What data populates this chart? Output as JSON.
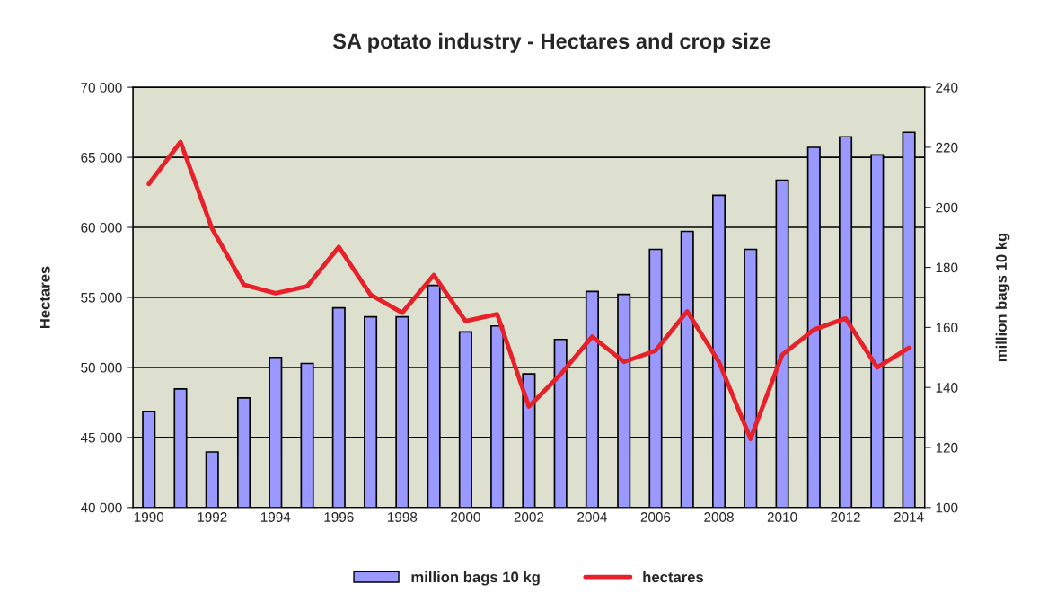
{
  "chart_data": {
    "type": "bar",
    "title": "SA potato industry - Hectares and crop size",
    "ylabel": "Hectares",
    "y2label": "million bags 10 kg",
    "categories": [
      "1990",
      null,
      "1992",
      null,
      "1994",
      null,
      "1996",
      null,
      "1998",
      null,
      "2000",
      null,
      "2002",
      null,
      "2004",
      null,
      "2006",
      null,
      "2008",
      null,
      "2010",
      null,
      "2012",
      null,
      "2014"
    ],
    "series": [
      {
        "name": "million bags 10 kg",
        "axis": "y2",
        "color": "#9999ff",
        "values": [
          132,
          139.5,
          118.5,
          136.5,
          150,
          148,
          166.5,
          163.5,
          163.5,
          174,
          158.5,
          160.5,
          144.5,
          156,
          172,
          171,
          186,
          192,
          204,
          186,
          209,
          220,
          223.5,
          217.5,
          225
        ]
      },
      {
        "name": "hectares",
        "type": "line",
        "color": "#e8202a",
        "values": [
          63100,
          66100,
          59900,
          55900,
          55300,
          55800,
          58600,
          55200,
          53900,
          56600,
          53300,
          53800,
          47200,
          49500,
          52200,
          50400,
          51200,
          54000,
          50400,
          44900,
          50900,
          52700,
          53500,
          50000,
          51400
        ]
      }
    ],
    "ylim": [
      40000,
      70000
    ],
    "yticks": [
      {
        "value": 40000,
        "label": "40 000"
      },
      {
        "value": 45000,
        "label": "45 000"
      },
      {
        "value": 50000,
        "label": "50 000"
      },
      {
        "value": 55000,
        "label": "55 000"
      },
      {
        "value": 60000,
        "label": "60 000"
      },
      {
        "value": 65000,
        "label": "65 000"
      },
      {
        "value": 70000,
        "label": "70 000"
      }
    ],
    "y2lim": [
      100,
      240
    ],
    "y2ticks": [
      100,
      120,
      140,
      160,
      180,
      200,
      220,
      240
    ],
    "grid": "y",
    "legend": "bottom",
    "marker": "none",
    "line_style": "solid"
  }
}
